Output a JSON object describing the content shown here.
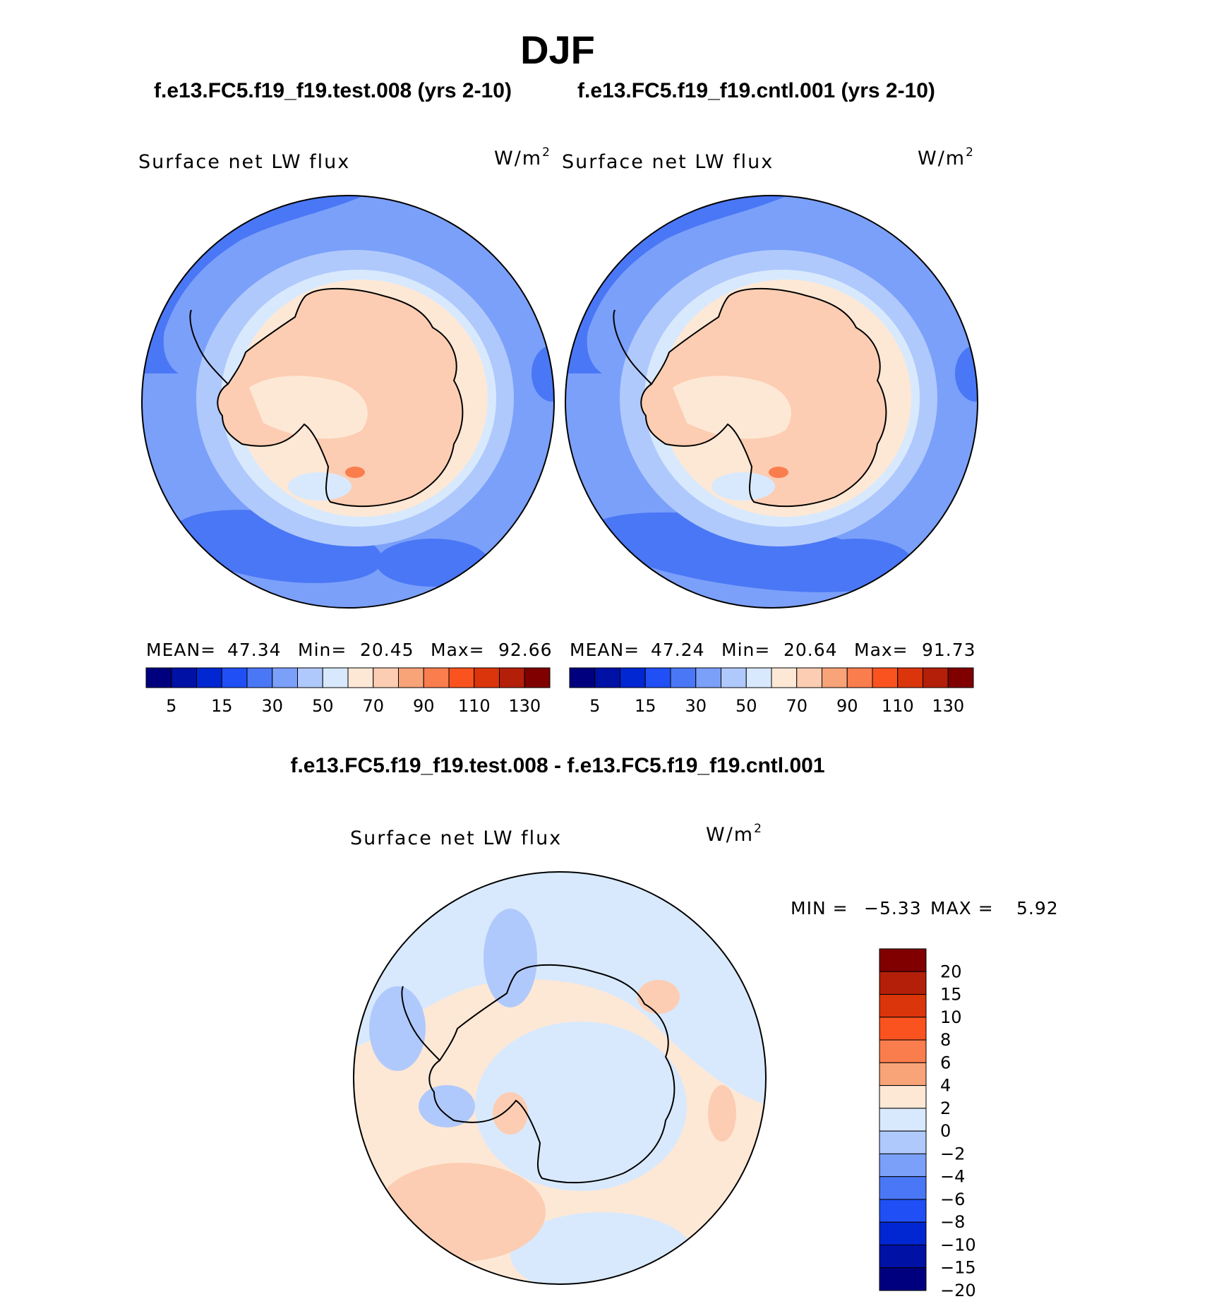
{
  "title": "DJF",
  "case_test": "f.e13.FC5.f19_f19.test.008 (yrs 2-10)",
  "case_cntl": "f.e13.FC5.f19_f19.cntl.001 (yrs 2-10)",
  "diff_title": "f.e13.FC5.f19_f19.test.008 - f.e13.FC5.f19_f19.cntl.001",
  "variable": "Surface net LW flux",
  "units_base": "W/m",
  "units_exp": "2",
  "panels": [
    {
      "mean_label": "MEAN=",
      "mean": "47.34",
      "min_label": "Min=",
      "min": "20.45",
      "max_label": "Max=",
      "max": "92.66"
    },
    {
      "mean_label": "MEAN=",
      "mean": "47.24",
      "min_label": "Min=",
      "min": "20.64",
      "max_label": "Max=",
      "max": "91.73"
    }
  ],
  "diff_stats": {
    "min_label": "MIN =",
    "min": "−5.33",
    "max_label": "MAX =",
    "max": "5.92"
  },
  "field_colorbar": {
    "colors": [
      "#00007f",
      "#0011a6",
      "#0027d1",
      "#1f4ff5",
      "#4a77f5",
      "#7ba0fa",
      "#b0c9fc",
      "#d8e9fd",
      "#fde8d6",
      "#fccdb2",
      "#f9a378",
      "#fa7d4e",
      "#fa531f",
      "#db350b",
      "#b31f08",
      "#800000"
    ],
    "tick_labels": [
      "5",
      "15",
      "30",
      "50",
      "70",
      "90",
      "110",
      "130"
    ]
  },
  "diff_colorbar": {
    "colors_top_to_bottom": [
      "#800000",
      "#b31f08",
      "#db350b",
      "#fa531f",
      "#fa7d4e",
      "#f9a378",
      "#fde8d6",
      "#d8e9fd",
      "#b0c9fc",
      "#7ba0fa",
      "#4a77f5",
      "#1f4ff5",
      "#0027d1",
      "#0011a6",
      "#00007f"
    ],
    "tick_labels": [
      "20",
      "15",
      "10",
      "8",
      "6",
      "4",
      "2",
      "0",
      "−2",
      "−4",
      "−6",
      "−8",
      "−10",
      "−15",
      "−20"
    ]
  },
  "map_legend_colors": {
    "land_warm": "#fde8d6",
    "land_peach": "#fccdb2",
    "ocean_light": "#d8e9fd",
    "ocean_mid": "#b0c9fc",
    "ocean": "#7ba0fa",
    "ocean_dark": "#4a77f5",
    "diff_pos": "#fccdb2",
    "diff_neg": "#b0c9fc"
  }
}
